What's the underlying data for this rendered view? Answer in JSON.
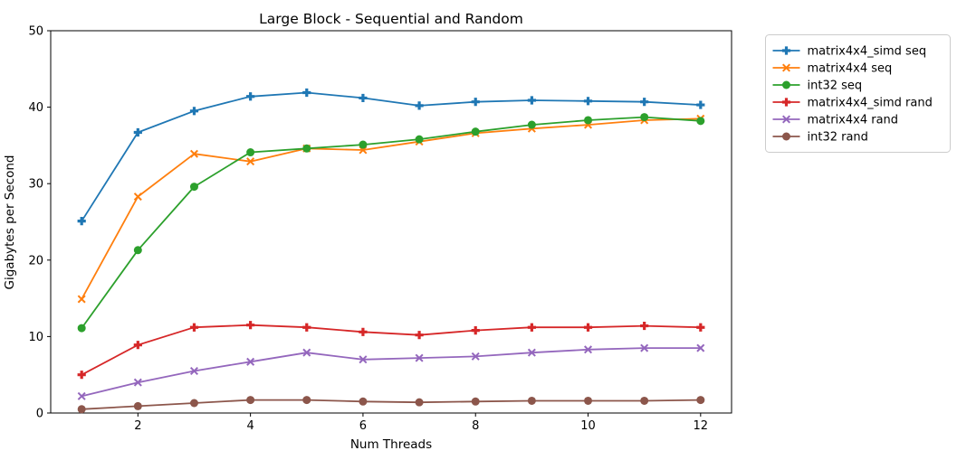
{
  "figure": {
    "background": "#ffffff",
    "text_color": "#000000",
    "spine_color": "#000000",
    "legend_border_color": "#cccccc"
  },
  "chart_data": {
    "type": "line",
    "title": "Large Block - Sequential and Random",
    "xlabel": "Num Threads",
    "ylabel": "Gigabytes per Second",
    "x": [
      1,
      2,
      3,
      4,
      5,
      6,
      7,
      8,
      9,
      10,
      11,
      12
    ],
    "xlim": [
      0.45,
      12.55
    ],
    "ylim": [
      0,
      50
    ],
    "xticks": [
      2,
      4,
      6,
      8,
      10,
      12
    ],
    "yticks": [
      0,
      10,
      20,
      30,
      40,
      50
    ],
    "grid": false,
    "legend_position": "upper-right-outside",
    "series": [
      {
        "name": "matrix4x4_simd seq",
        "color": "#1f77b4",
        "marker": "plus",
        "values": [
          25.1,
          36.7,
          39.5,
          41.4,
          41.9,
          41.2,
          40.2,
          40.7,
          40.9,
          40.8,
          40.7,
          40.3
        ]
      },
      {
        "name": "matrix4x4 seq",
        "color": "#ff7f0e",
        "marker": "x",
        "values": [
          14.9,
          28.3,
          33.9,
          32.9,
          34.6,
          34.4,
          35.5,
          36.6,
          37.2,
          37.7,
          38.3,
          38.5
        ]
      },
      {
        "name": "int32 seq",
        "color": "#2ca02c",
        "marker": "circle",
        "values": [
          11.1,
          21.3,
          29.6,
          34.1,
          34.6,
          35.1,
          35.8,
          36.8,
          37.7,
          38.3,
          38.7,
          38.2
        ]
      },
      {
        "name": "matrix4x4_simd rand",
        "color": "#d62728",
        "marker": "plus",
        "values": [
          5.0,
          8.9,
          11.2,
          11.5,
          11.2,
          10.6,
          10.2,
          10.8,
          11.2,
          11.2,
          11.4,
          11.2
        ]
      },
      {
        "name": "matrix4x4 rand",
        "color": "#9467bd",
        "marker": "x",
        "values": [
          2.2,
          4.0,
          5.5,
          6.7,
          7.9,
          7.0,
          7.2,
          7.4,
          7.9,
          8.3,
          8.5,
          8.5
        ]
      },
      {
        "name": "int32 rand",
        "color": "#8c564b",
        "marker": "circle",
        "values": [
          0.5,
          0.9,
          1.3,
          1.7,
          1.7,
          1.5,
          1.4,
          1.5,
          1.6,
          1.6,
          1.6,
          1.7
        ]
      }
    ]
  }
}
